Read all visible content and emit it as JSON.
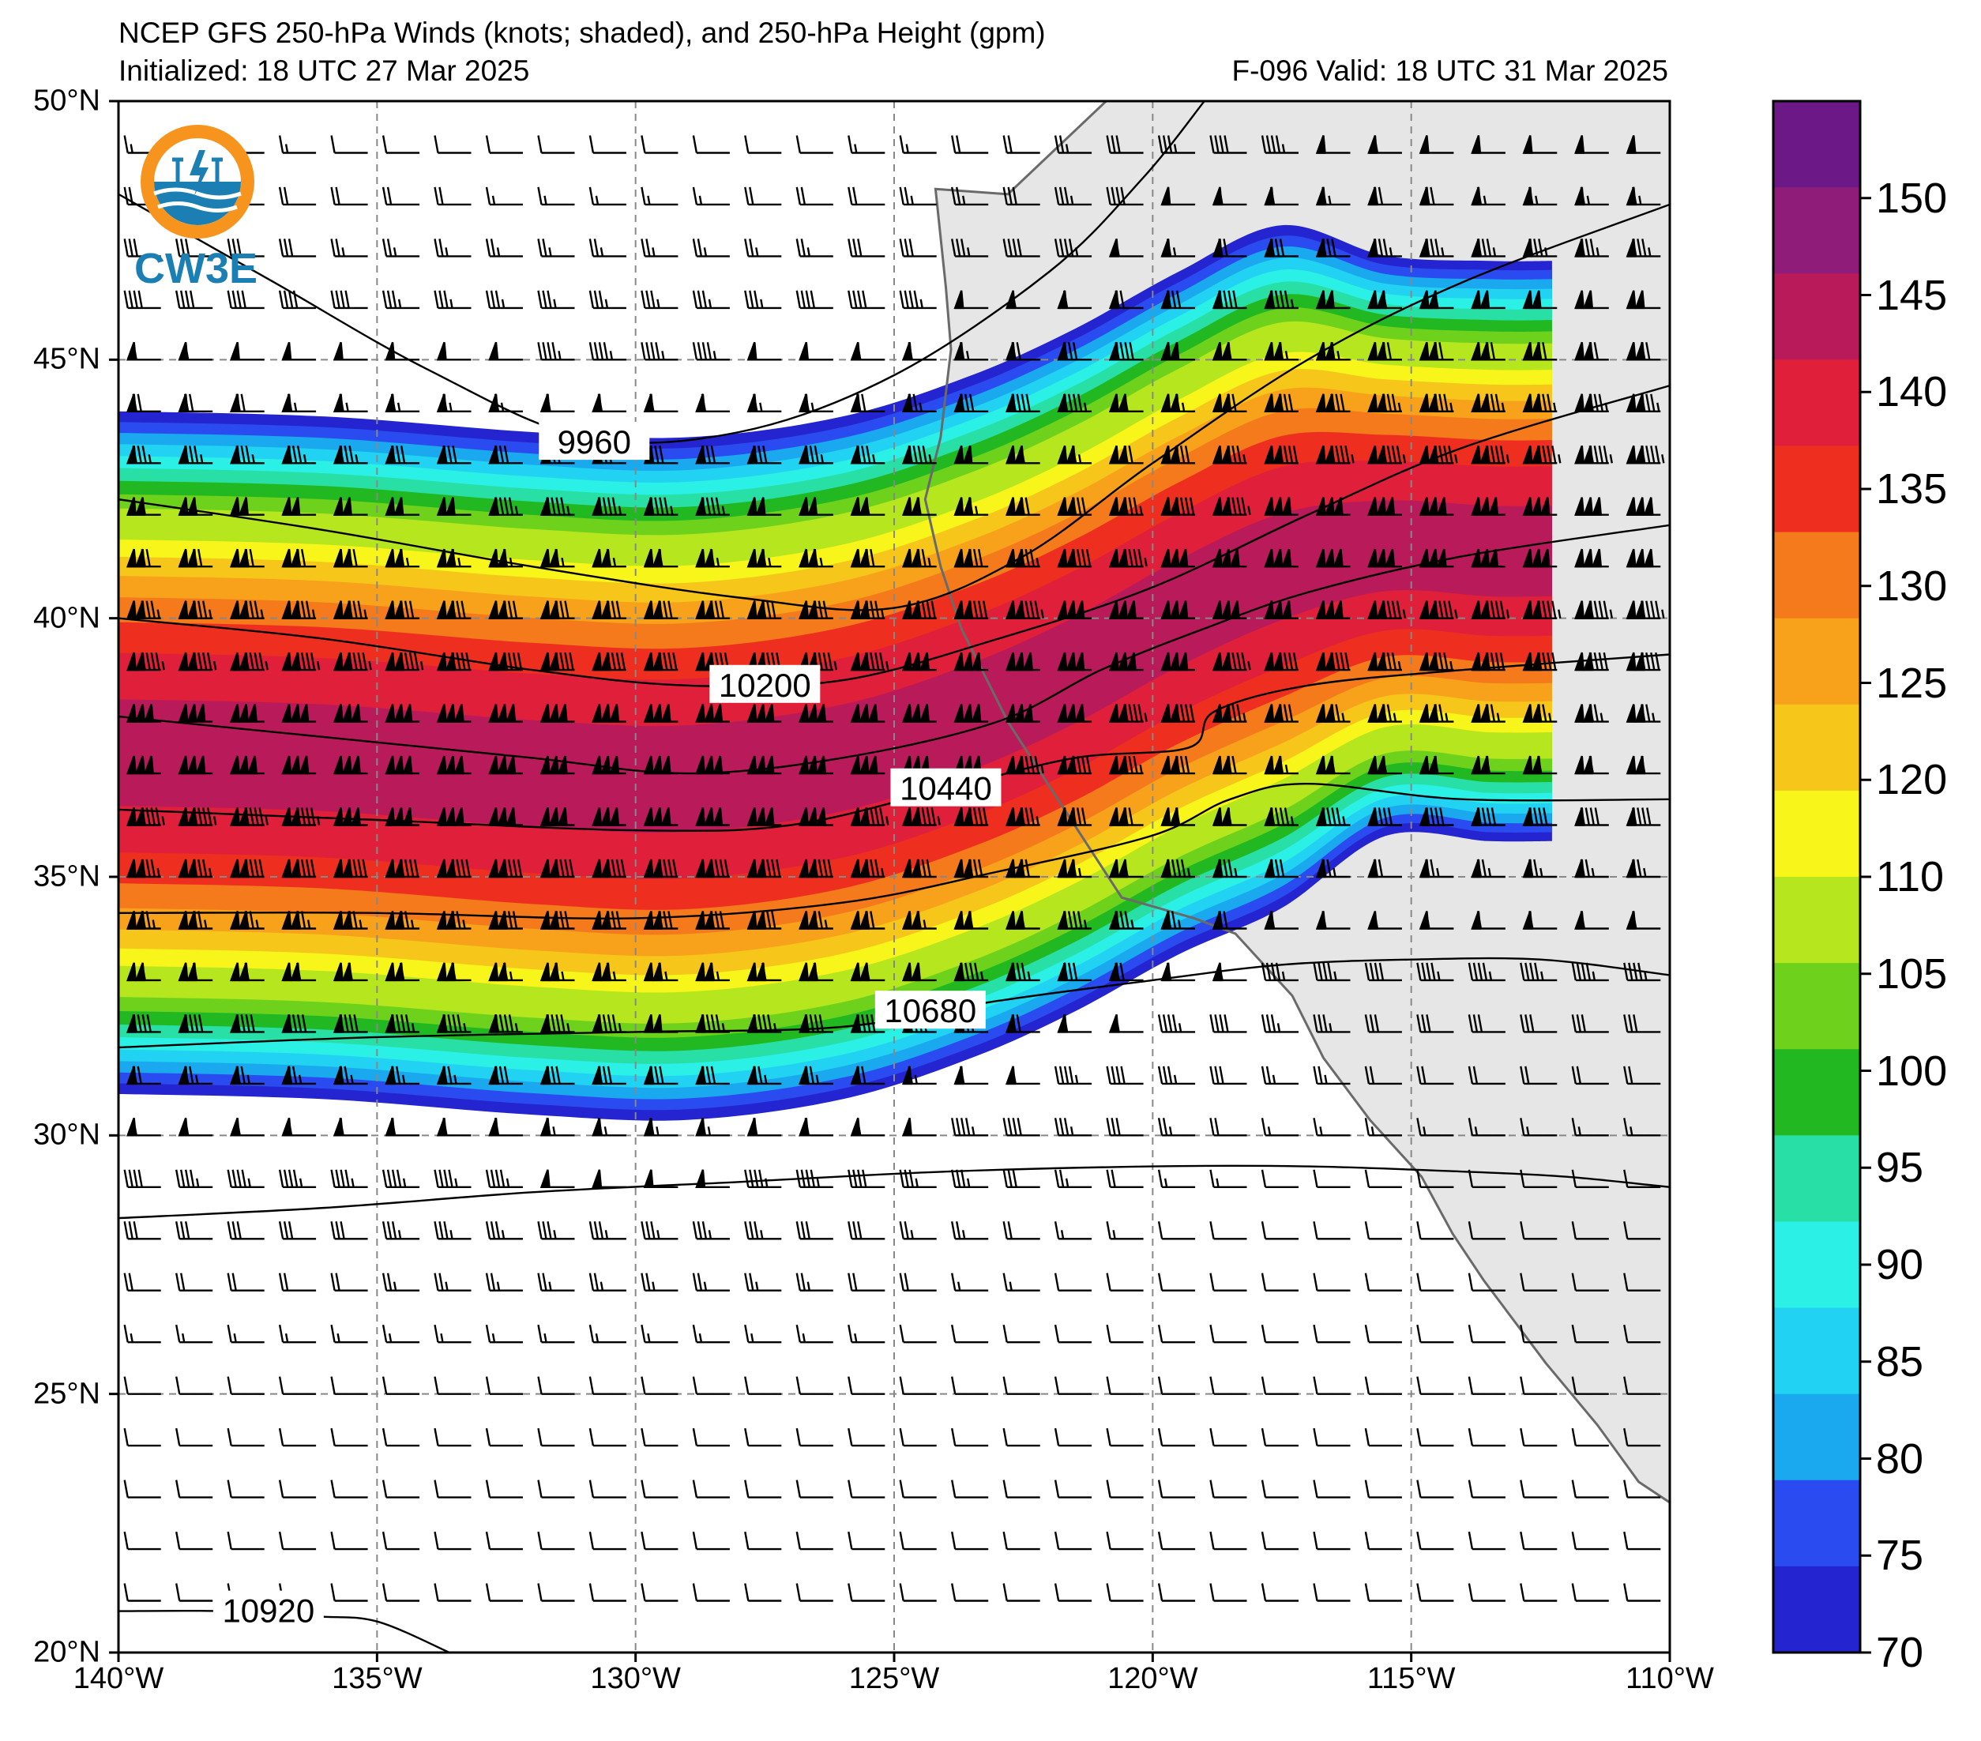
{
  "header": {
    "title_line1": "NCEP GFS 250-hPa Winds (knots; shaded), and 250-hPa Height (gpm)",
    "title_line2": "Initialized: 18 UTC 27 Mar 2025",
    "valid_line": "F-096  Valid: 18 UTC 31 Mar 2025"
  },
  "logo": {
    "text": "CW3E",
    "colors": {
      "ring": "#f7941d",
      "wave": "#1b7fb4"
    }
  },
  "axes": {
    "lat_labels": [
      {
        "lat": 50,
        "label": "50°N"
      },
      {
        "lat": 45,
        "label": "45°N"
      },
      {
        "lat": 40,
        "label": "40°N"
      },
      {
        "lat": 35,
        "label": "35°N"
      },
      {
        "lat": 30,
        "label": "30°N"
      },
      {
        "lat": 25,
        "label": "25°N"
      },
      {
        "lat": 20,
        "label": "20°N"
      }
    ],
    "lon_labels": [
      {
        "lon": -140,
        "label": "140°W"
      },
      {
        "lon": -135,
        "label": "135°W"
      },
      {
        "lon": -130,
        "label": "130°W"
      },
      {
        "lon": -125,
        "label": "125°W"
      },
      {
        "lon": -120,
        "label": "120°W"
      },
      {
        "lon": -115,
        "label": "115°W"
      },
      {
        "lon": -110,
        "label": "110°W"
      }
    ],
    "lat_range": [
      20,
      50
    ],
    "lon_range": [
      -140,
      -110
    ],
    "gridlines": "dashed"
  },
  "height_contours": {
    "units": "gpm",
    "labeled": [
      {
        "value": "9960",
        "lon": -130.8,
        "lat": 43.4
      },
      {
        "value": "10200",
        "lon": -127.5,
        "lat": 38.7
      },
      {
        "value": "10440",
        "lon": -124,
        "lat": 36.7
      },
      {
        "value": "10680",
        "lon": -124.3,
        "lat": 32.4
      },
      {
        "value": "10920",
        "lon": -137.1,
        "lat": 20.8
      }
    ],
    "lines": [
      {
        "level": 9960,
        "path": [
          [
            -140,
            48.2
          ],
          [
            -137,
            46.5
          ],
          [
            -134,
            44.8
          ],
          [
            -131,
            43.5
          ],
          [
            -128,
            43.6
          ],
          [
            -125,
            44.7
          ],
          [
            -122,
            46.7
          ],
          [
            -120.2,
            48.5
          ],
          [
            -119,
            50
          ]
        ]
      },
      {
        "level": 10080,
        "path": [
          [
            -140,
            42.3
          ],
          [
            -136,
            41.7
          ],
          [
            -132,
            41
          ],
          [
            -128,
            40.4
          ],
          [
            -125,
            40.2
          ],
          [
            -122.5,
            41.2
          ],
          [
            -120,
            43
          ],
          [
            -117,
            45
          ],
          [
            -114,
            46.5
          ],
          [
            -110,
            48
          ]
        ]
      },
      {
        "level": 10200,
        "path": [
          [
            -140,
            40
          ],
          [
            -136,
            39.6
          ],
          [
            -132,
            39
          ],
          [
            -129,
            38.7
          ],
          [
            -126,
            38.8
          ],
          [
            -123,
            39.6
          ],
          [
            -120,
            40.6
          ],
          [
            -117,
            42
          ],
          [
            -114,
            43.3
          ],
          [
            -110,
            44.5
          ]
        ]
      },
      {
        "level": 10320,
        "path": [
          [
            -140,
            38.1
          ],
          [
            -136,
            37.7
          ],
          [
            -132,
            37.3
          ],
          [
            -129,
            37
          ],
          [
            -126,
            37.3
          ],
          [
            -123,
            38
          ],
          [
            -121,
            39
          ],
          [
            -119,
            39.8
          ],
          [
            -117,
            40.5
          ],
          [
            -114,
            41.2
          ],
          [
            -110,
            41.8
          ]
        ]
      },
      {
        "level": 10440,
        "path": [
          [
            -140,
            36.3
          ],
          [
            -135,
            36.1
          ],
          [
            -130,
            35.9
          ],
          [
            -127,
            36
          ],
          [
            -124,
            36.7
          ],
          [
            -121.5,
            37.3
          ],
          [
            -119.3,
            37.5
          ],
          [
            -118.8,
            38.2
          ],
          [
            -117,
            38.7
          ],
          [
            -114,
            39
          ],
          [
            -110,
            39.3
          ]
        ]
      },
      {
        "level": 10560,
        "path": [
          [
            -140,
            34.3
          ],
          [
            -135,
            34.3
          ],
          [
            -130,
            34.2
          ],
          [
            -126,
            34.5
          ],
          [
            -123,
            35.1
          ],
          [
            -120,
            35.8
          ],
          [
            -118.5,
            36.5
          ],
          [
            -117,
            36.8
          ],
          [
            -114,
            36.5
          ],
          [
            -110,
            36.5
          ]
        ]
      },
      {
        "level": 10680,
        "path": [
          [
            -140,
            31.7
          ],
          [
            -135,
            31.9
          ],
          [
            -130,
            32
          ],
          [
            -126,
            32.1
          ],
          [
            -123,
            32.6
          ],
          [
            -120,
            33
          ],
          [
            -117.5,
            33.3
          ],
          [
            -115,
            33.4
          ],
          [
            -112.5,
            33.4
          ],
          [
            -110,
            33.1
          ]
        ]
      },
      {
        "level": 10800,
        "path": [
          [
            -140,
            28.4
          ],
          [
            -136,
            28.6
          ],
          [
            -132,
            28.9
          ],
          [
            -128,
            29.1
          ],
          [
            -124,
            29.3
          ],
          [
            -120,
            29.4
          ],
          [
            -117,
            29.4
          ],
          [
            -114,
            29.3
          ],
          [
            -112,
            29.2
          ],
          [
            -110,
            29
          ]
        ]
      },
      {
        "level": 10920,
        "path": [
          [
            -140,
            20.8
          ],
          [
            -138,
            20.8
          ],
          [
            -136.2,
            20.7
          ],
          [
            -135,
            20.6
          ],
          [
            -133.6,
            20
          ]
        ]
      }
    ]
  },
  "coastline": [
    [
      -120.9,
      50
    ],
    [
      -122.8,
      48.2
    ],
    [
      -124.2,
      48.3
    ],
    [
      -124,
      46.4
    ],
    [
      -123.9,
      45.2
    ],
    [
      -124.1,
      43.5
    ],
    [
      -124.4,
      42.3
    ],
    [
      -124.1,
      41
    ],
    [
      -123.7,
      39.8
    ],
    [
      -122.8,
      38
    ],
    [
      -121.9,
      36.6
    ],
    [
      -120.6,
      34.6
    ],
    [
      -119.2,
      34.2
    ],
    [
      -118.4,
      33.9
    ],
    [
      -117.3,
      32.7
    ],
    [
      -116.7,
      31.5
    ],
    [
      -115.8,
      30.3
    ],
    [
      -114.8,
      29.2
    ],
    [
      -114.2,
      28.1
    ],
    [
      -113.6,
      27.2
    ],
    [
      -112.4,
      25.6
    ],
    [
      -111.4,
      24.4
    ],
    [
      -110.6,
      23.3
    ],
    [
      -110,
      22.9
    ]
  ],
  "colorbar": {
    "units": "knots",
    "levels": [
      70,
      75,
      80,
      85,
      90,
      95,
      100,
      105,
      110,
      120,
      125,
      130,
      135,
      140,
      145,
      150
    ],
    "label_values": [
      "70",
      "75",
      "80",
      "85",
      "90",
      "95",
      "100",
      "105",
      "110",
      "120",
      "125",
      "130",
      "135",
      "140",
      "145",
      "150"
    ],
    "colors": [
      "#2424d0",
      "#2a4bef",
      "#1aa8ef",
      "#22d2f2",
      "#2af0e6",
      "#28dfa6",
      "#22b822",
      "#6ed21c",
      "#b6e61e",
      "#f8f51a",
      "#f6c61a",
      "#f7a21a",
      "#f47a1c",
      "#ee2f20",
      "#e01f3a",
      "#b81a5a",
      "#8e1c78",
      "#6c1886"
    ]
  },
  "jet": {
    "core_axis": [
      [
        -140,
        37.4
      ],
      [
        -136,
        37.3
      ],
      [
        -132,
        37.0
      ],
      [
        -129,
        36.9
      ],
      [
        -126,
        37.3
      ],
      [
        -123.5,
        38.1
      ],
      [
        -121.5,
        39.0
      ],
      [
        -119.5,
        40.1
      ],
      [
        -117.5,
        41.0
      ],
      [
        -115.5,
        41.4
      ],
      [
        -113.5,
        41.3
      ]
    ],
    "peak_speed_knots": 152
  },
  "wind_barbs": {
    "grid_spacing_deg": 1,
    "units": "knots"
  }
}
